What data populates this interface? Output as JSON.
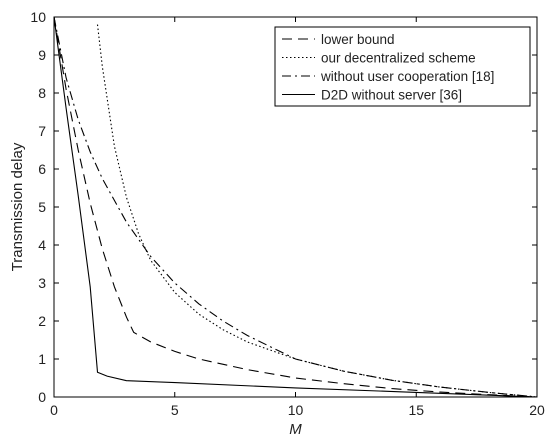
{
  "chart_data": {
    "type": "line",
    "title": "",
    "xlabel": "M",
    "ylabel": "Transmission delay",
    "xlim": [
      0,
      20
    ],
    "ylim": [
      0,
      10
    ],
    "xticks": [
      0,
      5,
      10,
      15,
      20
    ],
    "yticks": [
      0,
      1,
      2,
      3,
      4,
      5,
      6,
      7,
      8,
      9,
      10
    ],
    "grid": false,
    "legend_position": "top-right",
    "series": [
      {
        "name": "lower bound",
        "style": "dashed",
        "color": "#000000",
        "x": [
          0,
          0.5,
          1,
          1.5,
          2,
          2.5,
          3,
          3.3,
          4,
          5,
          6,
          8,
          10,
          12,
          14,
          16,
          18,
          20
        ],
        "y": [
          10,
          8.1,
          6.5,
          5.1,
          3.9,
          2.9,
          2.1,
          1.7,
          1.45,
          1.2,
          1.0,
          0.72,
          0.5,
          0.35,
          0.22,
          0.13,
          0.06,
          0
        ]
      },
      {
        "name": "our decentralized scheme",
        "style": "dotted",
        "color": "#000000",
        "x": [
          1.8,
          2,
          2.5,
          3,
          3.5,
          4,
          5,
          6,
          7,
          8,
          10,
          12,
          14,
          16,
          18,
          20
        ],
        "y": [
          9.8,
          8.7,
          6.6,
          5.25,
          4.3,
          3.6,
          2.75,
          2.18,
          1.77,
          1.45,
          1.0,
          0.68,
          0.44,
          0.26,
          0.12,
          0
        ]
      },
      {
        "name": "without user cooperation [18]",
        "style": "dashdot",
        "color": "#000000",
        "x": [
          0,
          0.5,
          1,
          1.5,
          2,
          3,
          4,
          5,
          6,
          7,
          8,
          10,
          12,
          14,
          16,
          18,
          20
        ],
        "y": [
          10,
          8.4,
          7.3,
          6.45,
          5.75,
          4.6,
          3.7,
          3.0,
          2.45,
          2.0,
          1.62,
          1.0,
          0.68,
          0.44,
          0.26,
          0.12,
          0
        ]
      },
      {
        "name": "D2D without server [36]",
        "style": "solid",
        "color": "#000000",
        "x": [
          0,
          0.5,
          1,
          1.5,
          1.8,
          2.2,
          3,
          5,
          10,
          15,
          20
        ],
        "y": [
          10,
          7.6,
          5.3,
          2.9,
          0.65,
          0.55,
          0.43,
          0.38,
          0.24,
          0.12,
          0
        ]
      }
    ]
  }
}
